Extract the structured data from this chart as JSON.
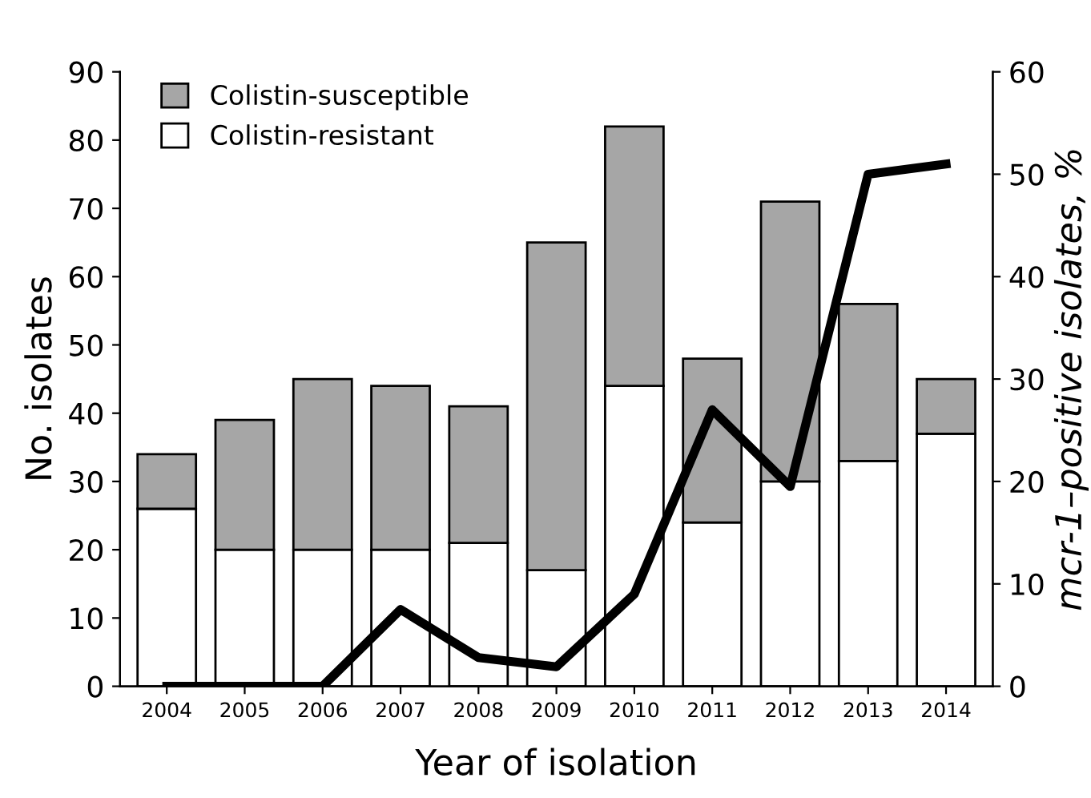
{
  "chart_data": {
    "type": "bar",
    "stacked": true,
    "xlabel": "Year of isolation",
    "ylabel": "No. isolates",
    "y2label": "mcr-1–positive isolates, %",
    "categories": [
      "2004",
      "2005",
      "2006",
      "2007",
      "2008",
      "2009",
      "2010",
      "2011",
      "2012",
      "2013",
      "2014"
    ],
    "series": [
      {
        "name": "Colistin-resistant",
        "color": "#ffffff",
        "values": [
          26,
          20,
          20,
          20,
          21,
          17,
          44,
          24,
          30,
          33,
          37
        ]
      },
      {
        "name": "Colistin-susceptible",
        "color": "#a6a6a6",
        "values": [
          8,
          19,
          25,
          24,
          20,
          48,
          38,
          24,
          41,
          23,
          8
        ]
      },
      {
        "type": "line",
        "axis": "y2",
        "color": "#000000",
        "values": [
          0,
          0,
          0,
          7.5,
          2.8,
          1.9,
          9,
          27,
          19.5,
          50,
          51
        ]
      }
    ],
    "ylim": [
      0,
      90
    ],
    "yticks": [
      0,
      10,
      20,
      30,
      40,
      50,
      60,
      70,
      80,
      90
    ],
    "y2lim": [
      0,
      60
    ],
    "y2ticks": [
      0,
      10,
      20,
      30,
      40,
      50,
      60
    ],
    "legend": "top left",
    "grid": false,
    "marker": "none",
    "line_style": "solid"
  }
}
